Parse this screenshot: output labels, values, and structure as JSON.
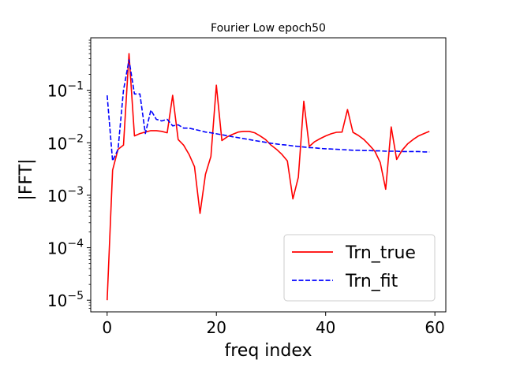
{
  "chart_data": {
    "type": "line",
    "title": "Fourier Low epoch50",
    "xlabel": "freq index",
    "ylabel": "|FFT|",
    "xlim": [
      -3,
      62
    ],
    "ylog": true,
    "ylim": [
      6e-06,
      1.0
    ],
    "x_ticks": [
      {
        "value": 0,
        "label": "0"
      },
      {
        "value": 20,
        "label": "20"
      },
      {
        "value": 40,
        "label": "40"
      },
      {
        "value": 60,
        "label": "60"
      }
    ],
    "y_ticks": [
      {
        "value": 1e-05,
        "base": "10",
        "exp": "−5"
      },
      {
        "value": 0.0001,
        "base": "10",
        "exp": "−4"
      },
      {
        "value": 0.001,
        "base": "10",
        "exp": "−3"
      },
      {
        "value": 0.01,
        "base": "10",
        "exp": "−2"
      },
      {
        "value": 0.1,
        "base": "10",
        "exp": "−1"
      }
    ],
    "grid": false,
    "legend_position": "lower-right",
    "series": [
      {
        "name": "Trn_true",
        "color": "#ff0000",
        "style": "solid",
        "x": [
          0,
          1,
          2,
          3,
          4,
          5,
          6,
          7,
          8,
          9,
          10,
          11,
          12,
          13,
          14,
          15,
          16,
          17,
          18,
          19,
          20,
          21,
          22,
          23,
          24,
          25,
          26,
          27,
          28,
          29,
          30,
          31,
          32,
          33,
          34,
          35,
          36,
          37,
          38,
          39,
          40,
          41,
          42,
          43,
          44,
          45,
          46,
          47,
          48,
          49,
          50,
          51,
          52,
          53,
          54,
          55,
          56,
          57,
          58,
          59
        ],
        "y": [
          1e-05,
          0.003,
          0.0075,
          0.009,
          0.5,
          0.0135,
          0.015,
          0.016,
          0.017,
          0.017,
          0.0165,
          0.0155,
          0.08,
          0.0115,
          0.009,
          0.006,
          0.0035,
          0.00045,
          0.0025,
          0.0055,
          0.125,
          0.011,
          0.013,
          0.0145,
          0.016,
          0.0165,
          0.0165,
          0.0155,
          0.0135,
          0.0115,
          0.009,
          0.0075,
          0.006,
          0.0045,
          0.00085,
          0.0022,
          0.062,
          0.0085,
          0.0105,
          0.012,
          0.0135,
          0.0148,
          0.0158,
          0.016,
          0.043,
          0.0158,
          0.0138,
          0.0115,
          0.009,
          0.0069,
          0.0042,
          0.0013,
          0.02,
          0.0048,
          0.0072,
          0.0095,
          0.0115,
          0.0135,
          0.015,
          0.0165
        ]
      },
      {
        "name": "Trn_fit",
        "color": "#0000ff",
        "style": "dashed",
        "x": [
          0,
          1,
          2,
          3,
          4,
          5,
          6,
          7,
          8,
          9,
          10,
          11,
          12,
          13,
          14,
          15,
          16,
          17,
          18,
          19,
          20,
          21,
          22,
          23,
          24,
          25,
          26,
          27,
          28,
          29,
          30,
          31,
          32,
          33,
          34,
          35,
          36,
          37,
          38,
          39,
          40,
          41,
          42,
          43,
          44,
          45,
          46,
          47,
          48,
          49,
          50,
          51,
          52,
          53,
          54,
          55,
          56,
          57,
          58,
          59
        ],
        "y": [
          0.08,
          0.0045,
          0.0075,
          0.1,
          0.38,
          0.085,
          0.085,
          0.015,
          0.042,
          0.028,
          0.026,
          0.028,
          0.021,
          0.022,
          0.019,
          0.019,
          0.018,
          0.017,
          0.016,
          0.0155,
          0.0148,
          0.0142,
          0.0136,
          0.013,
          0.0125,
          0.012,
          0.0115,
          0.011,
          0.0106,
          0.0102,
          0.0098,
          0.0095,
          0.0092,
          0.009,
          0.0087,
          0.0085,
          0.0083,
          0.0081,
          0.008,
          0.0078,
          0.0077,
          0.0076,
          0.0075,
          0.0074,
          0.0073,
          0.0072,
          0.0072,
          0.0071,
          0.0071,
          0.007,
          0.007,
          0.0069,
          0.0069,
          0.0069,
          0.0068,
          0.0068,
          0.0068,
          0.0068,
          0.0067,
          0.0067
        ]
      }
    ]
  }
}
